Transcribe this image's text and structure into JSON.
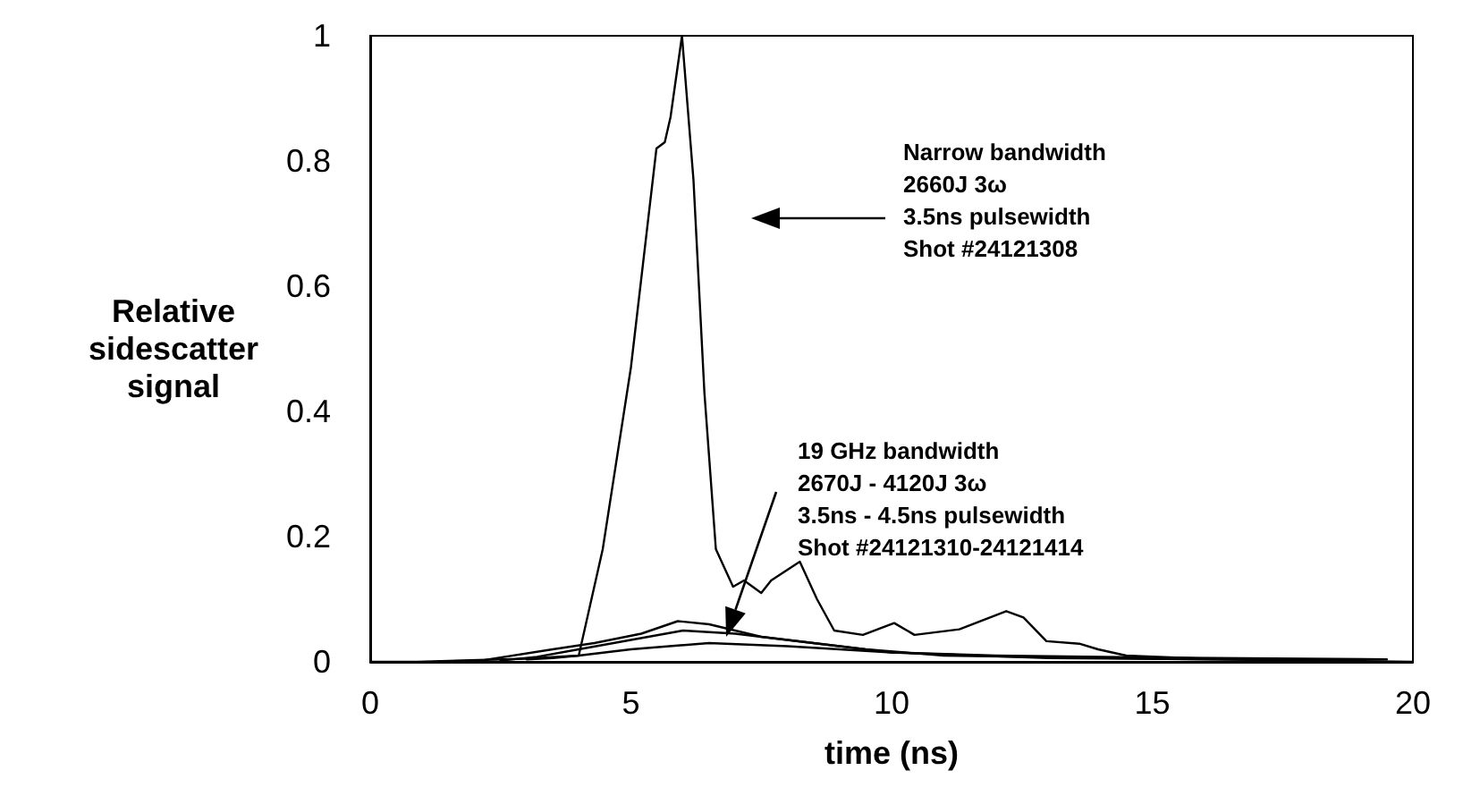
{
  "chart_data": {
    "type": "line",
    "xlabel": "time (ns)",
    "ylabel": "Relative\nsidescatter\nsignal",
    "xlim": [
      0,
      20
    ],
    "xticks": [
      0,
      5,
      10,
      15,
      20
    ],
    "ylim": [
      0,
      1
    ],
    "yticks": [
      0,
      0.2,
      0.4,
      0.6,
      0.8,
      1
    ],
    "grid": false,
    "marker": "none",
    "line_style": "solid",
    "series": [
      {
        "color": "#000000",
        "x": [
          0,
          0.9,
          3.0,
          4.0,
          4.46,
          5.0,
          5.49,
          5.65,
          5.76,
          5.98,
          6.2,
          6.41,
          6.63,
          6.96,
          7.17,
          7.5,
          7.69,
          8.24,
          8.57,
          8.9,
          9.45,
          10.05,
          10.44,
          11.3,
          12.2,
          12.53,
          12.97,
          13.6,
          13.96,
          14.5,
          16,
          20
        ],
        "values": [
          0,
          0,
          0.005,
          0.01,
          0.18,
          0.47,
          0.82,
          0.83,
          0.87,
          1.0,
          0.77,
          0.43,
          0.18,
          0.12,
          0.13,
          0.11,
          0.13,
          0.16,
          0.1,
          0.05,
          0.043,
          0.062,
          0.043,
          0.052,
          0.081,
          0.071,
          0.033,
          0.029,
          0.02,
          0.01,
          0.005,
          0
        ]
      },
      {
        "color": "#000000",
        "x": [
          1.5,
          2.2,
          3.5,
          4.3,
          5.2,
          5.9,
          6.5,
          7.5,
          8.5,
          9.5,
          11,
          15,
          18.5
        ],
        "values": [
          0,
          0.003,
          0.02,
          0.03,
          0.045,
          0.065,
          0.06,
          0.04,
          0.03,
          0.02,
          0.01,
          0.005,
          0.002
        ]
      },
      {
        "color": "#000000",
        "x": [
          2.5,
          3.2,
          4,
          5,
          6,
          7,
          8.5,
          10,
          13,
          17.5
        ],
        "values": [
          0.002,
          0.008,
          0.02,
          0.035,
          0.05,
          0.045,
          0.03,
          0.015,
          0.006,
          0.003
        ]
      },
      {
        "color": "#000000",
        "x": [
          3,
          3.5,
          4,
          5,
          6.5,
          8,
          10,
          12,
          15,
          19.5
        ],
        "values": [
          0.004,
          0.006,
          0.01,
          0.02,
          0.03,
          0.025,
          0.015,
          0.01,
          0.007,
          0.004
        ]
      }
    ],
    "annotations": [
      "Narrow bandwidth\n2660J 3ω\n3.5ns pulsewidth\nShot #24121308",
      "19 GHz bandwidth\n2670J - 4120J 3ω\n3.5ns - 4.5ns pulsewidth\nShot #24121310-24121414"
    ]
  }
}
